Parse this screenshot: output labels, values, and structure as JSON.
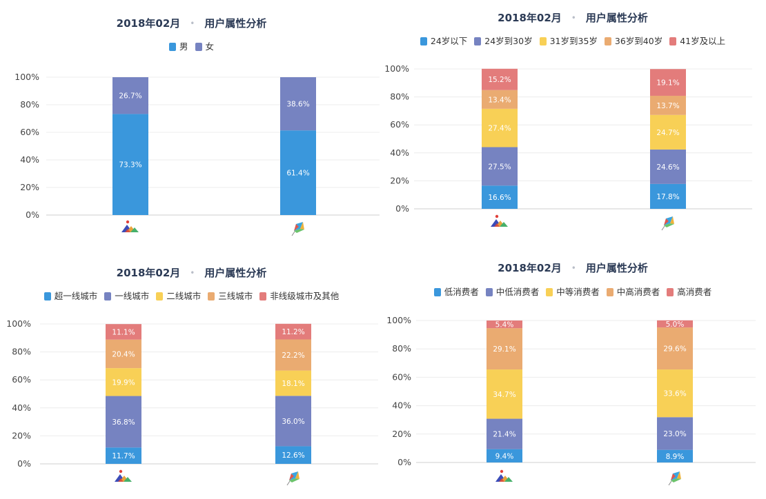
{
  "chart_data": [
    {
      "type": "bar",
      "stacked": true,
      "title": "2018年02月",
      "subtitle": "用户属性分析",
      "categories": [
        "app-icon-1",
        "app-icon-2"
      ],
      "ylim": [
        0,
        100
      ],
      "yticks": [
        "0%",
        "20%",
        "40%",
        "60%",
        "80%",
        "100%"
      ],
      "legend_position": "top",
      "grid": true,
      "series": [
        {
          "name": "男",
          "color": "#3a97dc",
          "values": [
            73.3,
            61.4
          ],
          "labels": [
            "73.3%",
            "61.4%"
          ]
        },
        {
          "name": "女",
          "color": "#7683c1",
          "values": [
            26.7,
            38.6
          ],
          "labels": [
            "26.7%",
            "38.6%"
          ]
        }
      ]
    },
    {
      "type": "bar",
      "stacked": true,
      "title": "2018年02月",
      "subtitle": "用户属性分析",
      "categories": [
        "app-icon-1",
        "app-icon-2"
      ],
      "ylim": [
        0,
        100
      ],
      "yticks": [
        "0%",
        "20%",
        "40%",
        "60%",
        "80%",
        "100%"
      ],
      "legend_position": "top",
      "grid": true,
      "series": [
        {
          "name": "24岁以下",
          "color": "#3a97dc",
          "values": [
            16.6,
            17.8
          ],
          "labels": [
            "16.6%",
            "17.8%"
          ]
        },
        {
          "name": "24岁到30岁",
          "color": "#7683c1",
          "values": [
            27.5,
            24.6
          ],
          "labels": [
            "27.5%",
            "24.6%"
          ]
        },
        {
          "name": "31岁到35岁",
          "color": "#f8d056",
          "values": [
            27.4,
            24.7
          ],
          "labels": [
            "27.4%",
            "24.7%"
          ]
        },
        {
          "name": "36岁到40岁",
          "color": "#eaab71",
          "values": [
            13.4,
            13.7
          ],
          "labels": [
            "13.4%",
            "13.7%"
          ]
        },
        {
          "name": "41岁及以上",
          "color": "#e37c7b",
          "values": [
            15.2,
            19.1
          ],
          "labels": [
            "15.2%",
            "19.1%"
          ]
        }
      ]
    },
    {
      "type": "bar",
      "stacked": true,
      "title": "2018年02月",
      "subtitle": "用户属性分析",
      "categories": [
        "app-icon-1",
        "app-icon-2"
      ],
      "ylim": [
        0,
        100
      ],
      "yticks": [
        "0%",
        "20%",
        "40%",
        "60%",
        "80%",
        "100%"
      ],
      "legend_position": "top",
      "grid": true,
      "series": [
        {
          "name": "超一线城市",
          "color": "#3a97dc",
          "values": [
            11.7,
            12.6
          ],
          "labels": [
            "11.7%",
            "12.6%"
          ]
        },
        {
          "name": "一线城市",
          "color": "#7683c1",
          "values": [
            36.8,
            36.0
          ],
          "labels": [
            "36.8%",
            "36.0%"
          ]
        },
        {
          "name": "二线城市",
          "color": "#f8d056",
          "values": [
            19.9,
            18.1
          ],
          "labels": [
            "19.9%",
            "18.1%"
          ]
        },
        {
          "name": "三线城市",
          "color": "#eaab71",
          "values": [
            20.4,
            22.2
          ],
          "labels": [
            "20.4%",
            "22.2%"
          ]
        },
        {
          "name": "非线级城市及其他",
          "color": "#e37c7b",
          "values": [
            11.1,
            11.2
          ],
          "labels": [
            "11.1%",
            "11.2%"
          ]
        }
      ]
    },
    {
      "type": "bar",
      "stacked": true,
      "title": "2018年02月",
      "subtitle": "用户属性分析",
      "categories": [
        "app-icon-1",
        "app-icon-2"
      ],
      "ylim": [
        0,
        100
      ],
      "yticks": [
        "0%",
        "20%",
        "40%",
        "60%",
        "80%",
        "100%"
      ],
      "legend_position": "top",
      "grid": true,
      "series": [
        {
          "name": "低消费者",
          "color": "#3a97dc",
          "values": [
            9.4,
            8.9
          ],
          "labels": [
            "9.4%",
            "8.9%"
          ]
        },
        {
          "name": "中低消费者",
          "color": "#7683c1",
          "values": [
            21.4,
            23.0
          ],
          "labels": [
            "21.4%",
            "23.0%"
          ]
        },
        {
          "name": "中等消费者",
          "color": "#f8d056",
          "values": [
            34.7,
            33.6
          ],
          "labels": [
            "34.7%",
            "33.6%"
          ]
        },
        {
          "name": "中高消费者",
          "color": "#eaab71",
          "values": [
            29.1,
            29.6
          ],
          "labels": [
            "29.1%",
            "29.6%"
          ]
        },
        {
          "name": "高消费者",
          "color": "#e37c7b",
          "values": [
            5.4,
            5.0
          ],
          "labels": [
            "5.4%",
            "5.0%"
          ]
        }
      ]
    }
  ]
}
